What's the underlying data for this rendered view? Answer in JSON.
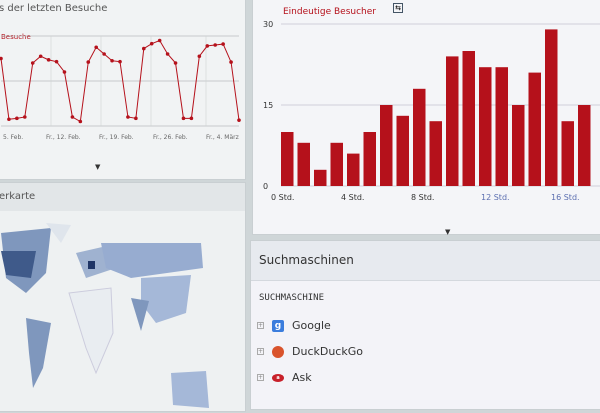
{
  "line_panel": {
    "title": "s der letzten Besuche",
    "legend": "Besuche"
  },
  "map_panel": {
    "title": "erkarte"
  },
  "bar_panel": {
    "legend": "Eindeutige Besucher"
  },
  "search_engines": {
    "title": "Suchmaschinen",
    "column": "SUCHMASCHINE",
    "items": [
      {
        "name": "Google",
        "icon": "google-icon",
        "color": "#3b7ddd"
      },
      {
        "name": "DuckDuckGo",
        "icon": "duckduckgo-icon",
        "color": "#d9532c"
      },
      {
        "name": "Ask",
        "icon": "ask-icon",
        "color": "#c8202a"
      }
    ]
  },
  "colors": {
    "series": "#b5111b",
    "map_high": "#2e4a7a",
    "map_mid": "#7f97bd",
    "map_low": "#b6c6de"
  },
  "chart_data": [
    {
      "type": "line",
      "legend": "Besuche",
      "x_tick_labels": [
        "5. Feb.",
        "Fr., 12. Feb.",
        "Fr., 19. Feb.",
        "Fr., 26. Feb.",
        "Fr., 4. März"
      ],
      "values": [
        15,
        1.5,
        1.7,
        2,
        14,
        15.5,
        14.7,
        14.3,
        12,
        2,
        1,
        14.2,
        17.5,
        16,
        14.5,
        14.3,
        2,
        1.7,
        17.2,
        18.3,
        19,
        16,
        14,
        1.7,
        1.7,
        15.5,
        17.8,
        18,
        18.2,
        14.2,
        1.3
      ],
      "grid": true
    },
    {
      "type": "bar",
      "legend": "Eindeutige Besucher",
      "y_ticks": [
        0,
        15,
        30
      ],
      "ylim": [
        0,
        30
      ],
      "x_tick_labels": [
        "0 Std.",
        "4 Std.",
        "8 Std.",
        "12 Std.",
        "16 Std."
      ],
      "categories": [
        0,
        1,
        2,
        3,
        4,
        5,
        6,
        7,
        8,
        9,
        10,
        11,
        12,
        13,
        14,
        15,
        16,
        17,
        18
      ],
      "values": [
        10,
        8,
        3,
        8,
        6,
        10,
        15,
        13,
        18,
        12,
        24,
        25,
        22,
        22,
        15,
        21,
        29,
        12,
        15
      ],
      "grid": true
    }
  ]
}
